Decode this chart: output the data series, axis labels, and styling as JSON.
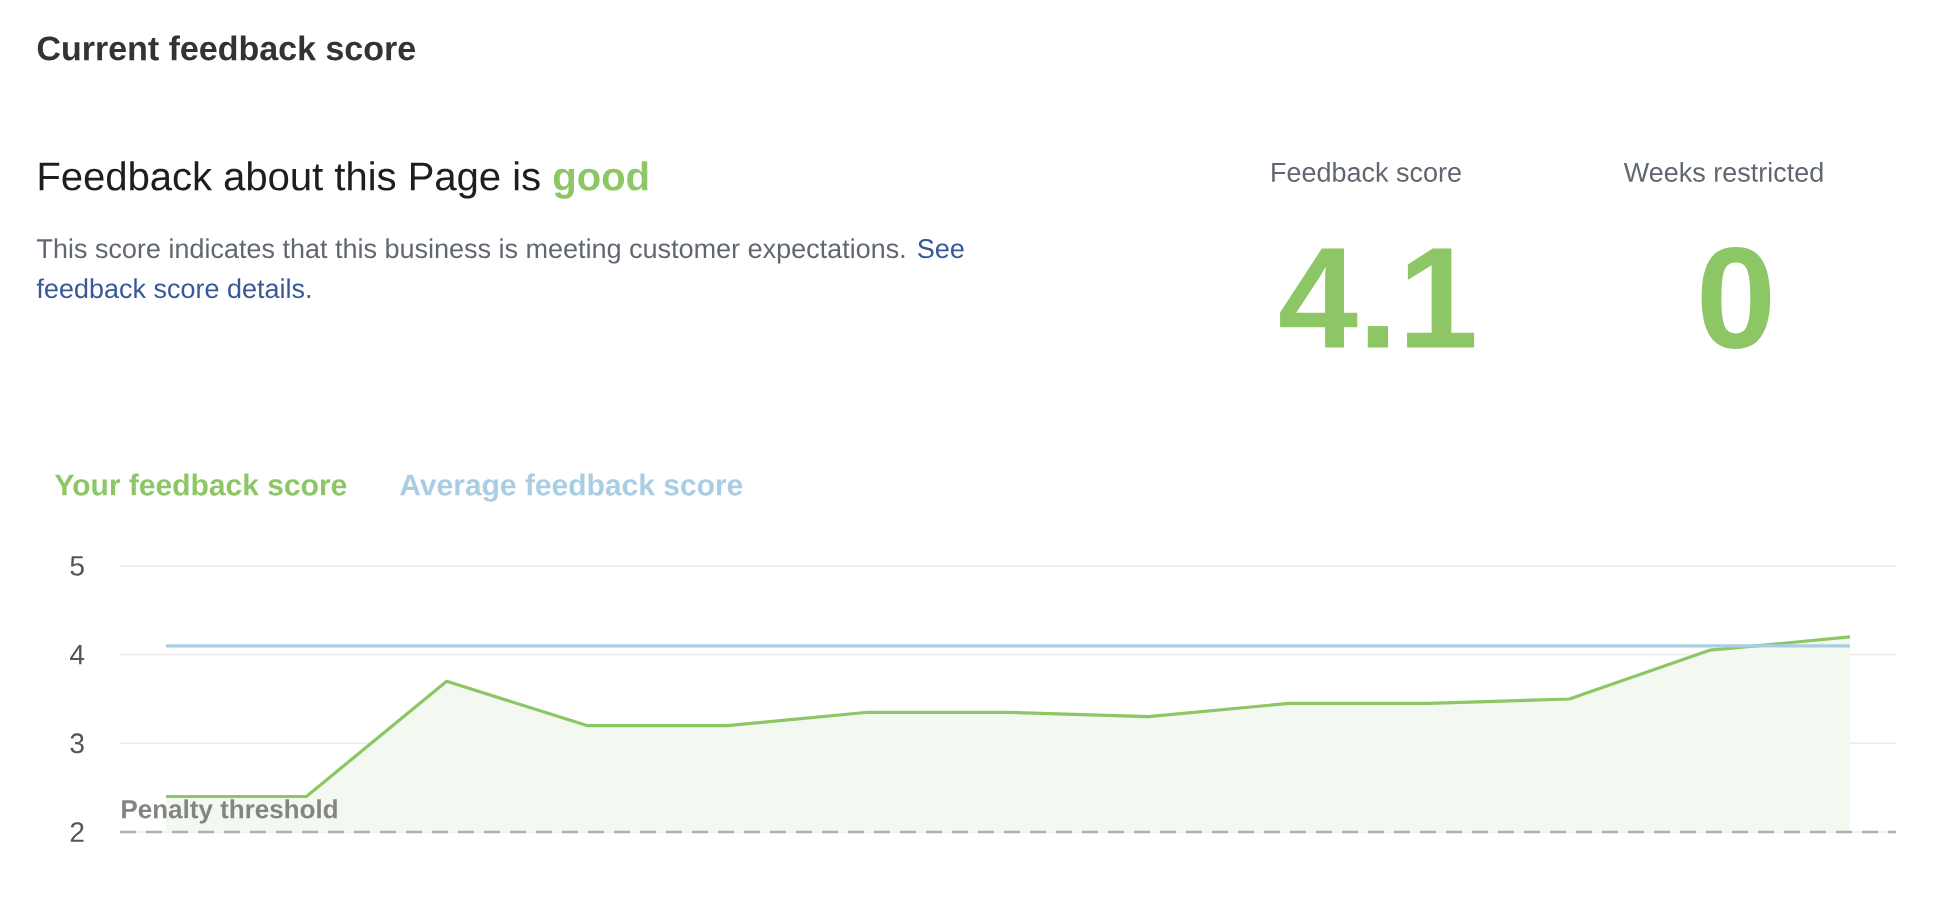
{
  "chart_data": {
    "type": "area",
    "title": "Current feedback score",
    "subtitle": "Feedback about this Page is **good**",
    "annotations": [
      "This score indicates that this business is meeting customer expectations.",
      "See feedback score details.",
      "Feedback score",
      "4.1",
      "Weeks restricted",
      "0"
    ],
    "categories": [
      null,
      null,
      null,
      null,
      null,
      null,
      null,
      null,
      null,
      null,
      null,
      null,
      null
    ],
    "series": [
      {
        "name": "Your feedback score",
        "color": "#8cc665",
        "values": [
          2.4,
          2.4,
          3.7,
          3.2,
          3.2,
          3.35,
          3.35,
          3.3,
          3.45,
          3.45,
          3.5,
          4.05,
          4.2
        ]
      },
      {
        "name": "Average feedback score",
        "color": "#a9cde3",
        "type": "line",
        "values": [
          4.1,
          4.1,
          4.1,
          4.1,
          4.1,
          4.1,
          4.1,
          4.1,
          4.1,
          4.1,
          4.1,
          4.1,
          4.1
        ]
      }
    ],
    "ylim": [
      2,
      5
    ],
    "yticks": [
      2,
      3,
      4,
      5
    ],
    "grid": "y",
    "legend": "top left",
    "marker": "none",
    "line_style": "solid",
    "ref_lines": [
      {
        "axis": "y",
        "value": 2,
        "label": "Penalty threshold",
        "color": "#b0b0b0",
        "line_style": "dashed"
      }
    ]
  }
}
